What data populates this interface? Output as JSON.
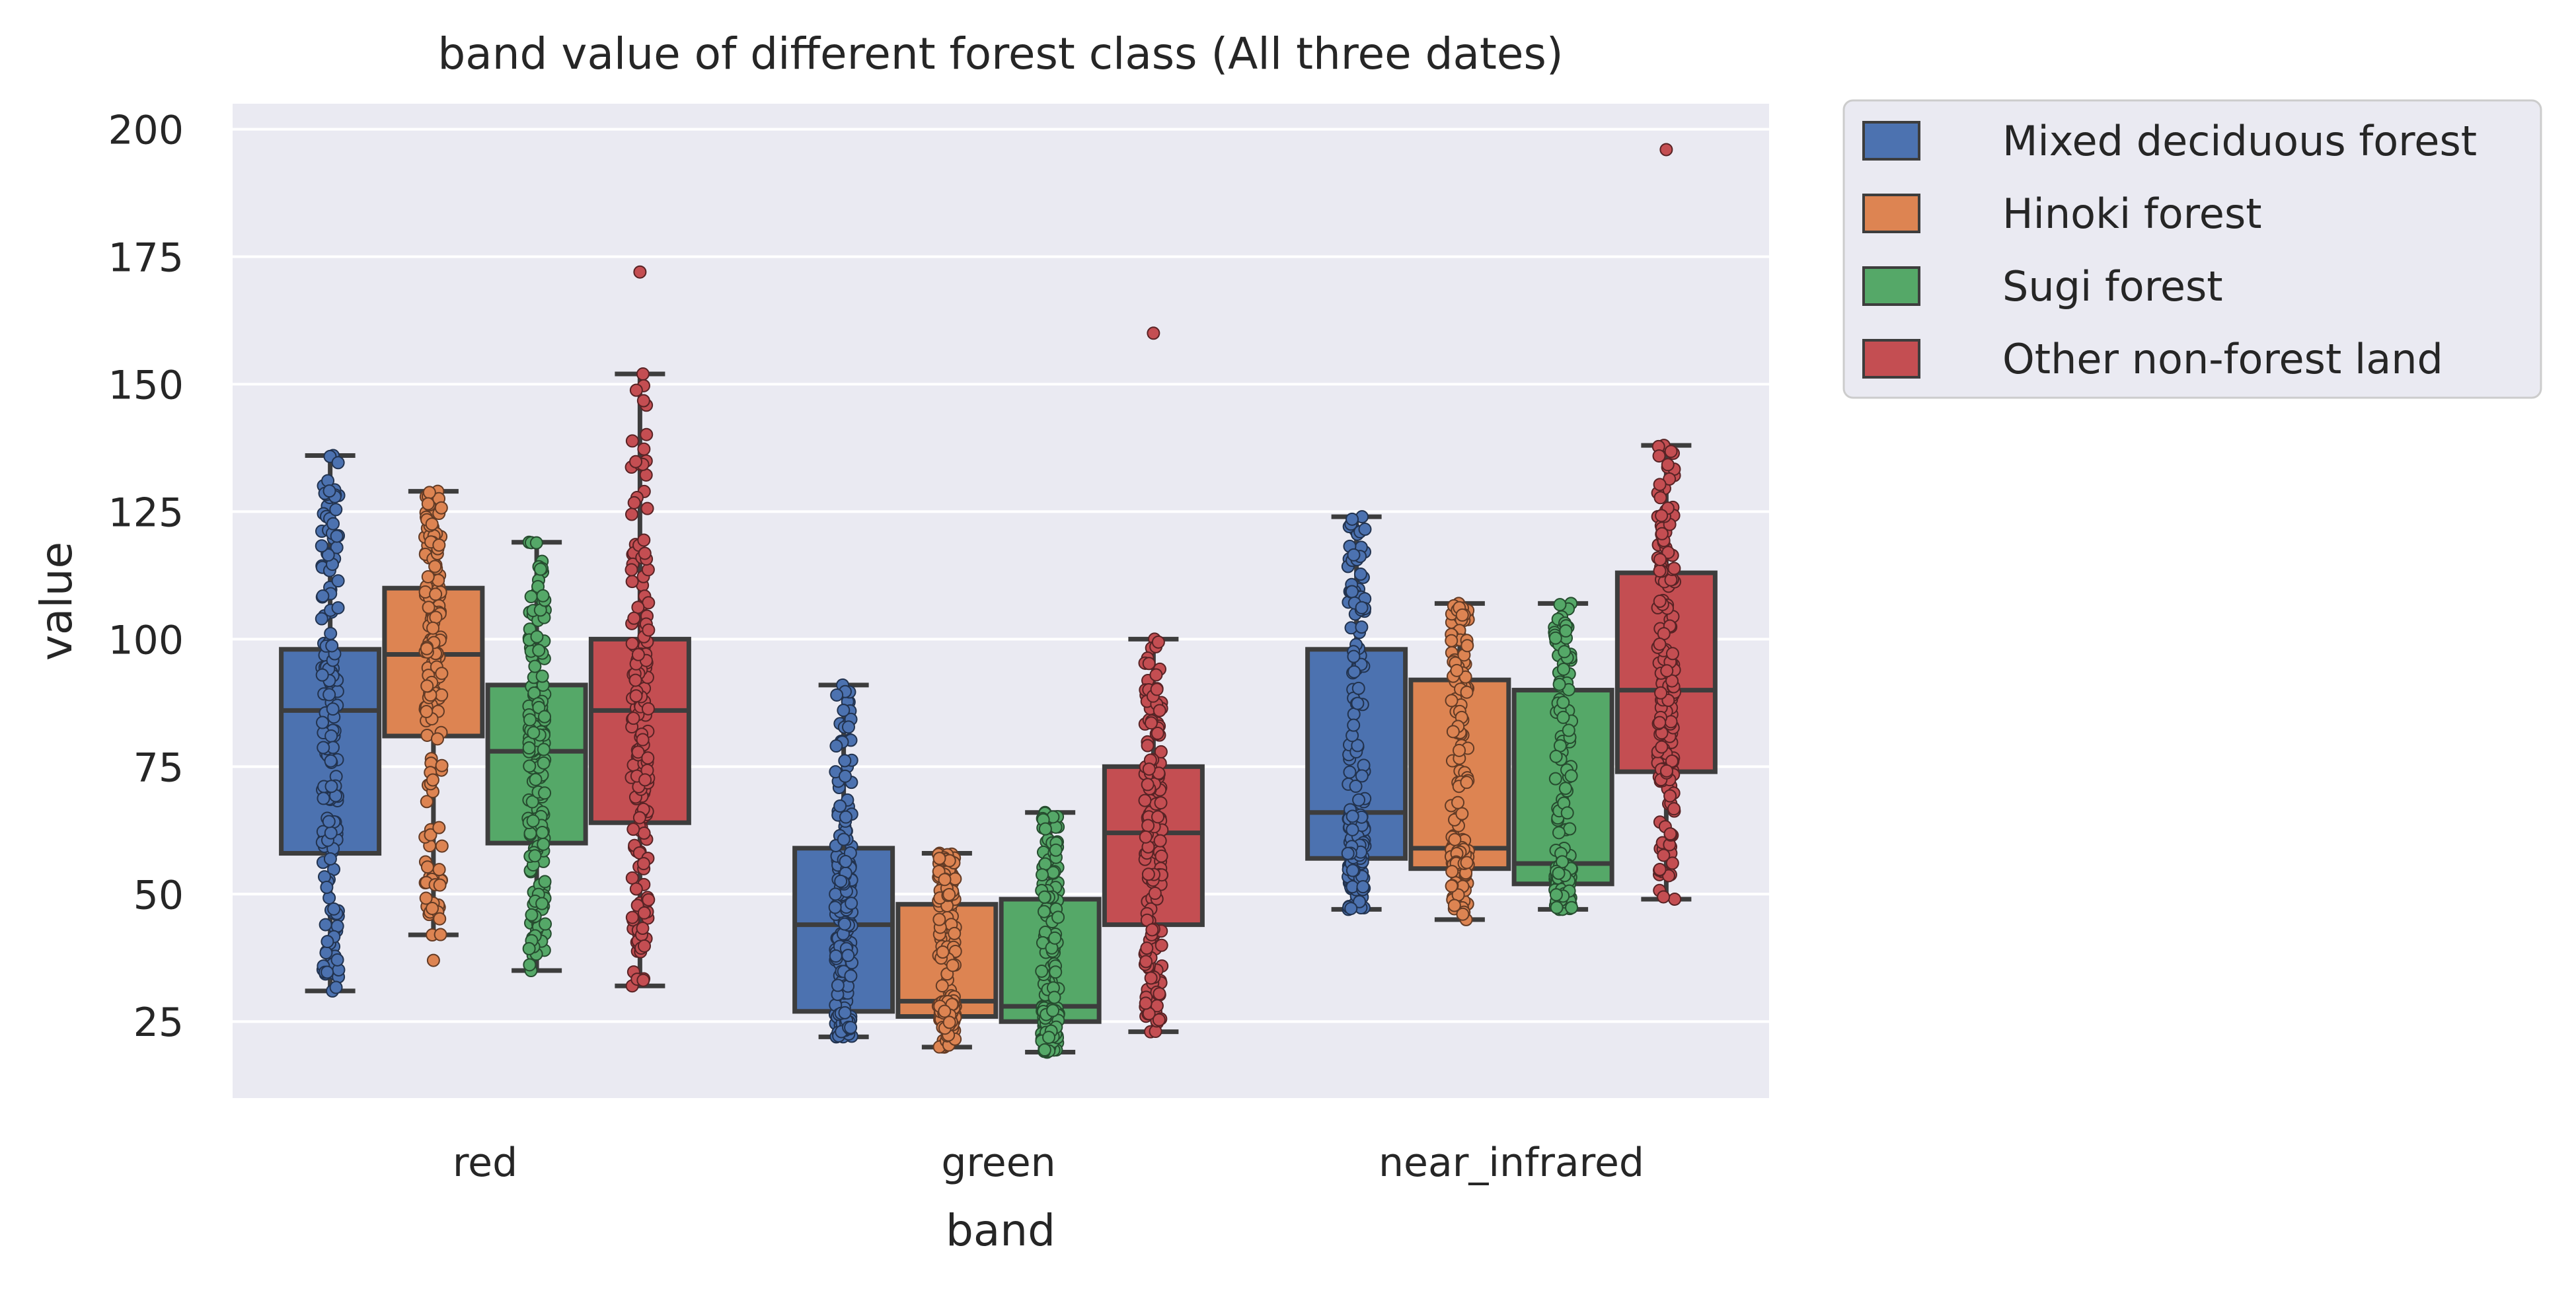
{
  "chart_data": {
    "type": "box",
    "title": "band value of different forest class (All three dates)",
    "xlabel": "band",
    "ylabel": "value",
    "categories": [
      "red",
      "green",
      "near_infrared"
    ],
    "ylim": [
      10,
      205
    ],
    "yticks": [
      25,
      50,
      75,
      100,
      125,
      150,
      175,
      200
    ],
    "grid": true,
    "legend_position": "outside-right-top",
    "series": [
      {
        "name": "Mixed deciduous forest",
        "color": "#4c72b0",
        "boxes": [
          {
            "min": 31,
            "q1": 58,
            "median": 86,
            "q3": 98,
            "max": 136,
            "outliers": []
          },
          {
            "min": 22,
            "q1": 27,
            "median": 44,
            "q3": 59,
            "max": 91,
            "outliers": []
          },
          {
            "min": 47,
            "q1": 57,
            "median": 66,
            "q3": 98,
            "max": 124,
            "outliers": []
          }
        ]
      },
      {
        "name": "Hinoki forest",
        "color": "#dd8452",
        "boxes": [
          {
            "min": 42,
            "q1": 81,
            "median": 97,
            "q3": 110,
            "max": 129,
            "outliers": [
              37
            ]
          },
          {
            "min": 20,
            "q1": 26,
            "median": 29,
            "q3": 48,
            "max": 58,
            "outliers": []
          },
          {
            "min": 45,
            "q1": 55,
            "median": 59,
            "q3": 92,
            "max": 107,
            "outliers": []
          }
        ]
      },
      {
        "name": "Sugi forest",
        "color": "#55a868",
        "boxes": [
          {
            "min": 35,
            "q1": 60,
            "median": 78,
            "q3": 91,
            "max": 119,
            "outliers": []
          },
          {
            "min": 19,
            "q1": 25,
            "median": 28,
            "q3": 49,
            "max": 66,
            "outliers": []
          },
          {
            "min": 47,
            "q1": 52,
            "median": 56,
            "q3": 90,
            "max": 107,
            "outliers": []
          }
        ]
      },
      {
        "name": "Other non-forest land",
        "color": "#c44e52",
        "boxes": [
          {
            "min": 32,
            "q1": 64,
            "median": 86,
            "q3": 100,
            "max": 152,
            "outliers": [
              172
            ]
          },
          {
            "min": 23,
            "q1": 44,
            "median": 62,
            "q3": 75,
            "max": 100,
            "outliers": [
              160
            ]
          },
          {
            "min": 49,
            "q1": 74,
            "median": 90,
            "q3": 113,
            "max": 138,
            "outliers": [
              196
            ]
          }
        ]
      }
    ]
  }
}
